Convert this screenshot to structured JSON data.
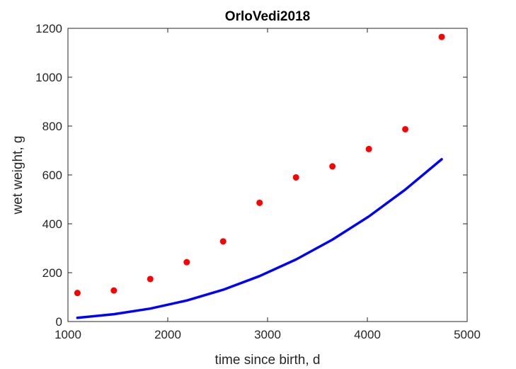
{
  "chart_data": {
    "type": "scatter",
    "title": "OrloVedi2018",
    "xlabel": "time since birth, d",
    "ylabel": "wet weight, g",
    "xlim": [
      1000,
      5000
    ],
    "ylim": [
      0,
      1200
    ],
    "xticks": [
      1000,
      2000,
      3000,
      4000,
      5000
    ],
    "yticks": [
      0,
      200,
      400,
      600,
      800,
      1000,
      1200
    ],
    "grid": false,
    "legend": "none",
    "series": [
      {
        "kind": "points",
        "color": "#ff0000",
        "x": [
          1095,
          1460,
          1825,
          2190,
          2555,
          2920,
          3285,
          3650,
          4015,
          4380,
          4745
        ],
        "y": [
          117,
          127,
          174,
          243,
          328,
          486,
          590,
          635,
          706,
          787,
          1165
        ]
      },
      {
        "kind": "line",
        "color": "#0000ff",
        "x": [
          1095,
          1460,
          1825,
          2190,
          2555,
          2920,
          3285,
          3650,
          4015,
          4380,
          4745
        ],
        "y": [
          15,
          30,
          53,
          86,
          130,
          186,
          254,
          335,
          430,
          540,
          664
        ]
      }
    ]
  }
}
